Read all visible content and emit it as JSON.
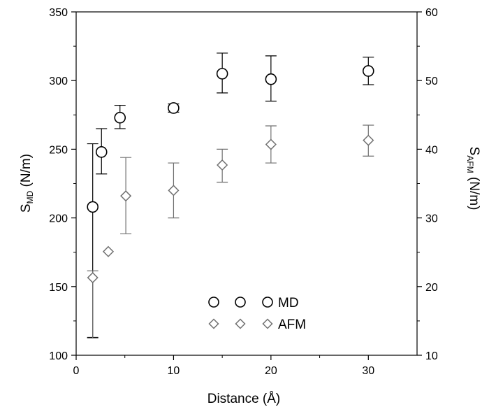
{
  "chart_data": {
    "type": "scatter",
    "xlabel": "Distance (Å)",
    "ylabel_main": "S",
    "ylabel_sub": "MD",
    "ylabel_unit": " (N/m)",
    "y2label_main": "S",
    "y2label_sub": "AFM",
    "y2label_unit": " (N/m)",
    "xlim": [
      0,
      35
    ],
    "ylim": [
      100,
      350
    ],
    "y2lim": [
      10,
      60
    ],
    "x_ticks": [
      0,
      10,
      20,
      30
    ],
    "y_ticks": [
      100,
      150,
      200,
      250,
      300,
      350
    ],
    "y2_ticks": [
      10,
      20,
      30,
      40,
      50,
      60
    ],
    "grid": false,
    "legend_position": "bottom-center",
    "series": [
      {
        "name": "MD",
        "axis": "left",
        "marker": "circle",
        "color": "#000000",
        "x": [
          1.7,
          2.6,
          4.5,
          10,
          15,
          20,
          30
        ],
        "y": [
          208,
          248,
          273,
          280,
          305,
          301,
          307
        ],
        "err_low": [
          113,
          232,
          265,
          277,
          291,
          285,
          297
        ],
        "err_high": [
          254,
          265,
          282,
          283,
          320,
          318,
          317
        ]
      },
      {
        "name": "AFM",
        "axis": "right",
        "marker": "diamond",
        "color": "#707070",
        "x": [
          1.7,
          3.3,
          5.1,
          10,
          15,
          20,
          30
        ],
        "y": [
          21.3,
          25.1,
          33.2,
          34.0,
          37.7,
          40.7,
          41.3
        ],
        "err_low": [
          12.5,
          null,
          27.7,
          30.0,
          35.2,
          38.0,
          39.0
        ],
        "err_high": [
          22.3,
          null,
          38.8,
          38.0,
          40.0,
          43.4,
          43.5
        ]
      }
    ]
  }
}
